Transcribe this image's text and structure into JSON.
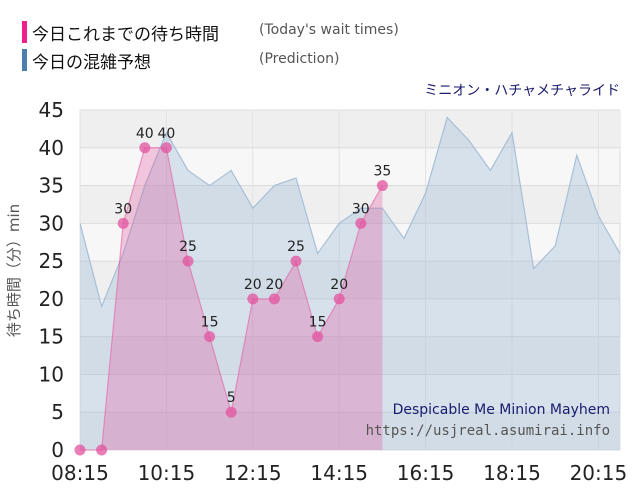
{
  "legend": {
    "actual_label": "今日これまでの待ち時間",
    "actual_note": "(Today's wait times)",
    "actual_color": "#f0208a",
    "prediction_label": "今日の混雑予想",
    "prediction_note": "(Prediction)",
    "prediction_color": "#4a7fb0"
  },
  "ride_name_ja": "ミニオン・ハチャメチャライド",
  "ride_name_en": "Despicable Me Minion Mayhem",
  "site_url": "https://usjreal.asumirai.info",
  "chart_data": {
    "type": "area",
    "ylabel": "待ち時間（分）min",
    "ylim": [
      0,
      45
    ],
    "y_ticks": [
      0,
      5,
      10,
      15,
      20,
      25,
      30,
      35,
      40,
      45
    ],
    "x_tick_labels": [
      "08:15",
      "10:15",
      "12:15",
      "14:15",
      "16:15",
      "18:15",
      "20:15"
    ],
    "grid": true,
    "series": [
      {
        "role": "actual",
        "color": "#e3539f",
        "x": [
          "08:15",
          "08:45",
          "09:15",
          "09:45",
          "10:15",
          "10:45",
          "11:15",
          "11:45",
          "12:15",
          "12:45",
          "13:15",
          "13:45",
          "14:15",
          "14:45",
          "15:15"
        ],
        "values": [
          0,
          0,
          30,
          40,
          40,
          25,
          15,
          5,
          20,
          20,
          25,
          15,
          20,
          30,
          35
        ]
      },
      {
        "role": "prediction",
        "color": "#a7bfd6",
        "x": [
          "08:15",
          "08:45",
          "09:15",
          "09:45",
          "10:15",
          "10:45",
          "11:15",
          "11:45",
          "12:15",
          "12:45",
          "13:15",
          "13:45",
          "14:15",
          "14:45",
          "15:15",
          "15:45",
          "16:15",
          "16:45",
          "17:15",
          "17:45",
          "18:15",
          "18:45",
          "19:15",
          "19:45",
          "20:15",
          "20:45"
        ],
        "values": [
          30,
          19,
          26,
          35,
          42,
          37,
          35,
          37,
          32,
          35,
          36,
          26,
          30,
          32,
          32,
          28,
          34,
          44,
          41,
          37,
          42,
          24,
          27,
          39,
          31,
          26
        ]
      }
    ]
  }
}
